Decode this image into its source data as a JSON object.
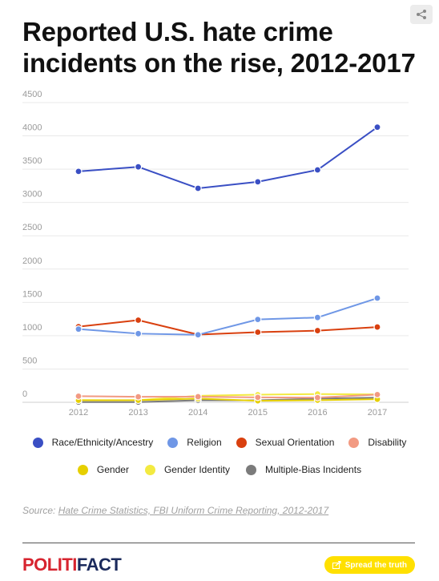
{
  "title": "Reported U.S. hate crime incidents on the rise, 2012-2017",
  "source": {
    "prefix": "Source:",
    "link_text": "Hate Crime Statistics, FBI Uniform Crime Reporting, 2012-2017"
  },
  "logo": {
    "part1": "POLITI",
    "part2": "FACT"
  },
  "spread_button": "Spread the truth",
  "icons": {
    "share": "share-icon",
    "spread": "share-arrow-icon"
  },
  "chart_data": {
    "type": "line",
    "x": [
      "2012",
      "2013",
      "2014",
      "2015",
      "2016",
      "2017"
    ],
    "ylim": [
      0,
      4500
    ],
    "yticks": [
      0,
      500,
      1000,
      1500,
      2000,
      2500,
      3000,
      3500,
      4000,
      4500
    ],
    "grid": true,
    "legend_position": "bottom",
    "series": [
      {
        "name": "Race/Ethnicity/Ancestry",
        "color": "#3a4fc4",
        "values": [
          3467,
          3535,
          3213,
          3310,
          3489,
          4131
        ]
      },
      {
        "name": "Religion",
        "color": "#6f97e6",
        "values": [
          1099,
          1031,
          1014,
          1244,
          1273,
          1564
        ]
      },
      {
        "name": "Sexual Orientation",
        "color": "#d9400f",
        "values": [
          1135,
          1233,
          1017,
          1053,
          1076,
          1130
        ]
      },
      {
        "name": "Disability",
        "color": "#f29a82",
        "values": [
          92,
          83,
          84,
          74,
          70,
          116
        ]
      },
      {
        "name": "Gender",
        "color": "#e6cf00",
        "values": [
          30,
          31,
          55,
          23,
          32,
          46
        ]
      },
      {
        "name": "Gender Identity",
        "color": "#f3ea41",
        "values": [
          33,
          31,
          98,
          114,
          124,
          119
        ]
      },
      {
        "name": "Multiple-Bias Incidents",
        "color": "#7b7b7b",
        "values": [
          3,
          3,
          30,
          30,
          55,
          69
        ]
      }
    ]
  }
}
